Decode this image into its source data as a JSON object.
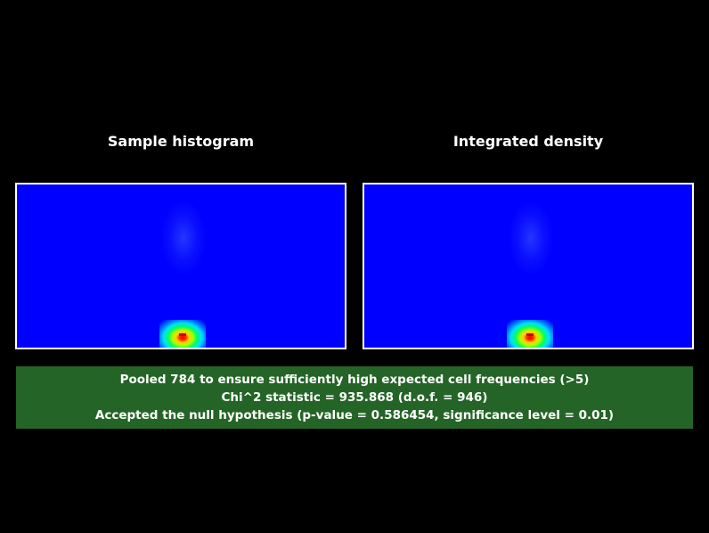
{
  "panels": {
    "left_title": "Sample histogram",
    "right_title": "Integrated density"
  },
  "colors": {
    "background": "#000000",
    "heatmap_base": "#0000ff",
    "result_box": "#256427",
    "text": "#ffffff"
  },
  "result": {
    "line1": "Pooled 784 to ensure sufficiently high expected cell frequencies (>5)",
    "line2": "Chi^2 statistic = 935.868 (d.o.f. = 946)",
    "line3": "Accepted the null hypothesis (p-value = 0.586454, significance level = 0.01)"
  }
}
